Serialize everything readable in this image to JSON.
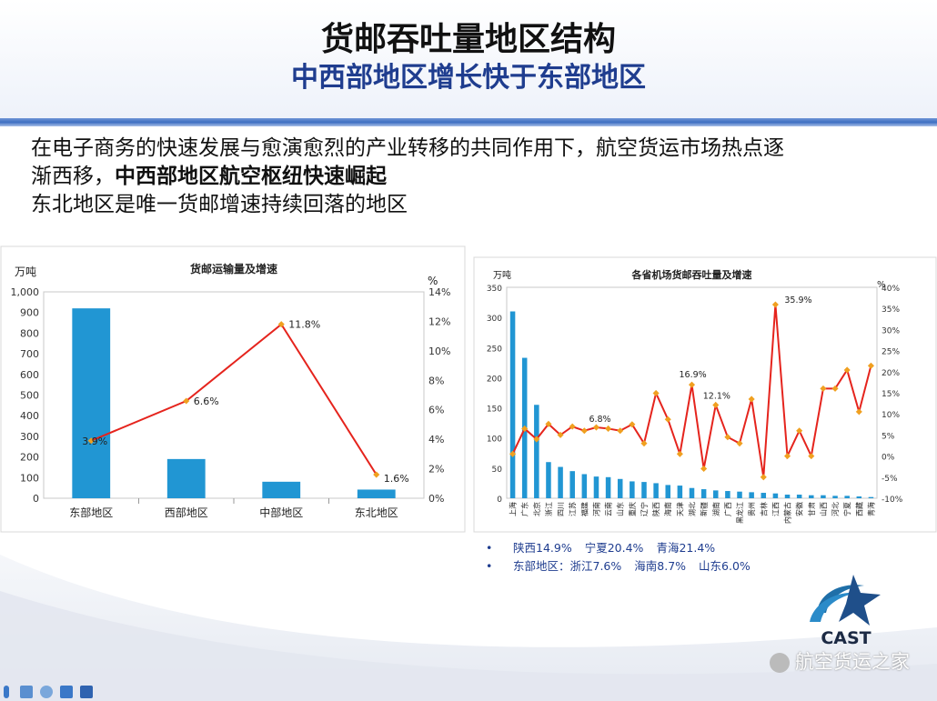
{
  "header": {
    "title": "货邮吞吐量地区结构",
    "subtitle": "中西部地区增长快于东部地区"
  },
  "intro": {
    "line1": "在电子商务的快速发展与愈演愈烈的产业转移的共同作用下，航空货运市场热点逐",
    "line2_plain": "渐西移，",
    "line2_bold": "中西部地区航空枢纽快速崛起",
    "line3": "东北地区是唯一货邮增速持续回落的地区"
  },
  "chart_data": [
    {
      "type": "bar",
      "title": "货邮运输量及增速",
      "ylabel": "万吨",
      "y2label": "%",
      "categories": [
        "东部地区",
        "西部地区",
        "中部地区",
        "东北地区"
      ],
      "ylim": [
        0,
        1000
      ],
      "yticks": [
        0,
        100,
        200,
        300,
        400,
        500,
        600,
        700,
        800,
        900,
        1000
      ],
      "ytick_labels": [
        "0",
        "100",
        "200",
        "300",
        "400",
        "500",
        "600",
        "700",
        "800",
        "900",
        "1,000"
      ],
      "y2lim": [
        0,
        14
      ],
      "y2ticks": [
        0,
        2,
        4,
        6,
        8,
        10,
        12,
        14
      ],
      "y2tick_labels": [
        "0%",
        "2%",
        "4%",
        "6%",
        "8%",
        "10%",
        "12%",
        "14%"
      ],
      "series": [
        {
          "kind": "bar",
          "axis": "left",
          "color": "#2196d3",
          "values": [
            920,
            190,
            80,
            42
          ]
        },
        {
          "kind": "line",
          "axis": "right",
          "color": "#e5241d",
          "marker_color": "#f0a020",
          "values": [
            3.9,
            6.6,
            11.8,
            1.6
          ],
          "labels": [
            "3.9%",
            "6.6%",
            "11.8%",
            "1.6%"
          ]
        }
      ]
    },
    {
      "type": "bar",
      "title": "各省机场货邮吞吐量及增速",
      "ylabel": "万吨",
      "y2label": "%",
      "categories": [
        "上海",
        "广东",
        "北京",
        "浙江",
        "四川",
        "江苏",
        "福建",
        "河南",
        "云南",
        "山东",
        "重庆",
        "辽宁",
        "陕西",
        "海南",
        "天津",
        "湖北",
        "新疆",
        "湖南",
        "广西",
        "黑龙江",
        "贵州",
        "吉林",
        "江西",
        "内蒙古",
        "安徽",
        "甘肃",
        "山西",
        "河北",
        "宁夏",
        "西藏",
        "青海"
      ],
      "ylim": [
        0,
        350
      ],
      "yticks": [
        0,
        50,
        100,
        150,
        200,
        250,
        300,
        350
      ],
      "ytick_labels": [
        "0",
        "50",
        "100",
        "150",
        "200",
        "250",
        "300",
        "350"
      ],
      "y2lim": [
        -10,
        40
      ],
      "y2ticks": [
        -10,
        -5,
        0,
        5,
        10,
        15,
        20,
        25,
        30,
        35,
        40
      ],
      "y2tick_labels": [
        "-10%",
        "-5%",
        "0%",
        "5%",
        "10%",
        "15%",
        "20%",
        "25%",
        "30%",
        "35%",
        "40%"
      ],
      "series": [
        {
          "kind": "bar",
          "axis": "left",
          "color": "#2196d3",
          "values": [
            310,
            233,
            155,
            60,
            52,
            45,
            40,
            36,
            35,
            32,
            28,
            27,
            25,
            22,
            21,
            17,
            15,
            13,
            12,
            11,
            10,
            9,
            8,
            6,
            6,
            5,
            5,
            4,
            4,
            3,
            2
          ]
        },
        {
          "kind": "line",
          "axis": "right",
          "color": "#e5241d",
          "marker_color": "#f0a020",
          "values": [
            0.5,
            6.5,
            4,
            7.6,
            5,
            7,
            6,
            6.8,
            6.5,
            6,
            7.5,
            3,
            14.9,
            8.7,
            0.5,
            16.9,
            -3,
            12.1,
            4.5,
            3,
            13.5,
            -5,
            35.9,
            0,
            6,
            0,
            16,
            16,
            20.4,
            10.5,
            21.4
          ],
          "labels": [
            {
              "index": 7,
              "text": "6.8%"
            },
            {
              "index": 15,
              "text": "16.9%"
            },
            {
              "index": 17,
              "text": "12.1%"
            },
            {
              "index": 22,
              "text": "35.9%"
            }
          ]
        }
      ]
    }
  ],
  "notes": {
    "bullet": "•",
    "line1": [
      "陕西14.9%",
      "宁夏20.4%",
      "青海21.4%"
    ],
    "line2": [
      "东部地区：浙江7.6%",
      "海南8.7%",
      "山东6.0%"
    ]
  },
  "logo": {
    "text": "CAST"
  },
  "watermark": "航空货运之家",
  "colors": {
    "accent": "#1f3d8f",
    "bar": "#2196d3",
    "line": "#e5241d",
    "marker": "#f0a020",
    "header_band": "#3e6fc2"
  }
}
